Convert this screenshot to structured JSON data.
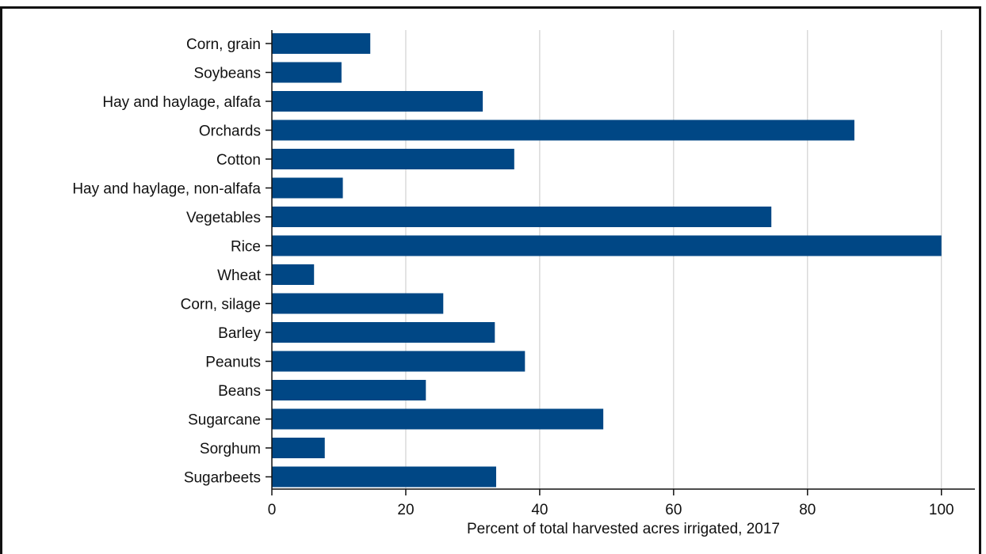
{
  "chart_data": {
    "type": "bar",
    "orientation": "horizontal",
    "title": "",
    "xlabel": "Percent of total harvested acres irrigated, 2017",
    "ylabel": "",
    "xlim": [
      0,
      105
    ],
    "x_ticks": [
      0,
      20,
      40,
      60,
      80,
      100
    ],
    "grid": "vertical",
    "bar_color": "#004785",
    "categories": [
      "Corn, grain",
      "Soybeans",
      "Hay and haylage, alfafa",
      "Orchards",
      "Cotton",
      "Hay and haylage, non-alfafa",
      "Vegetables",
      "Rice",
      "Wheat",
      "Corn, silage",
      "Barley",
      "Peanuts",
      "Beans",
      "Sugarcane",
      "Sorghum",
      "Sugarbeets"
    ],
    "values": [
      14.7,
      10.4,
      31.5,
      87.0,
      36.2,
      10.6,
      74.6,
      100.0,
      6.3,
      25.6,
      33.3,
      37.8,
      23.0,
      49.5,
      7.9,
      33.5
    ]
  }
}
